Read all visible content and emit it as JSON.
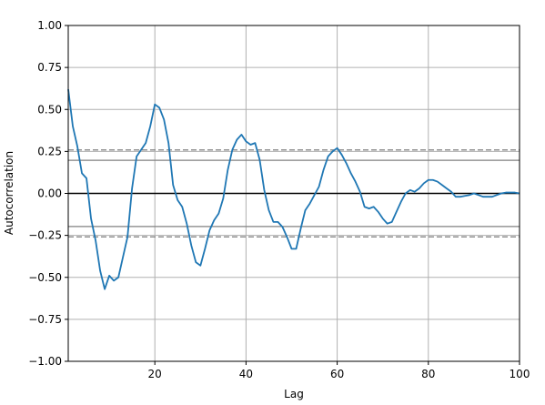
{
  "chart_data": {
    "type": "line",
    "xlabel": "Lag",
    "ylabel": "Autocorrelation",
    "xlim": [
      1,
      100
    ],
    "ylim": [
      -1.0,
      1.0
    ],
    "grid": true,
    "x_ticks": [
      20,
      40,
      60,
      80,
      100
    ],
    "x_tick_labels": [
      "20",
      "40",
      "60",
      "80",
      "100"
    ],
    "y_ticks": [
      -1.0,
      -0.75,
      -0.5,
      -0.25,
      0.0,
      0.25,
      0.5,
      0.75,
      1.0
    ],
    "y_tick_labels": [
      "−1.00",
      "−0.75",
      "−0.50",
      "−0.25",
      "0.00",
      "0.25",
      "0.50",
      "0.75",
      "1.00"
    ],
    "reference_lines": [
      {
        "y": 0.0,
        "style": "solid",
        "color": "#000000"
      },
      {
        "y": 0.197,
        "style": "solid",
        "color": "#808080"
      },
      {
        "y": -0.197,
        "style": "solid",
        "color": "#808080"
      },
      {
        "y": 0.259,
        "style": "dashed",
        "color": "#808080"
      },
      {
        "y": -0.259,
        "style": "dashed",
        "color": "#808080"
      }
    ],
    "series": [
      {
        "color": "#1f77b4",
        "x": [
          1,
          2,
          3,
          4,
          5,
          6,
          7,
          8,
          9,
          10,
          11,
          12,
          13,
          14,
          15,
          16,
          17,
          18,
          19,
          20,
          21,
          22,
          23,
          24,
          25,
          26,
          27,
          28,
          29,
          30,
          31,
          32,
          33,
          34,
          35,
          36,
          37,
          38,
          39,
          40,
          41,
          42,
          43,
          44,
          45,
          46,
          47,
          48,
          49,
          50,
          51,
          52,
          53,
          54,
          55,
          56,
          57,
          58,
          59,
          60,
          61,
          62,
          63,
          64,
          65,
          66,
          67,
          68,
          69,
          70,
          71,
          72,
          73,
          74,
          75,
          76,
          77,
          78,
          79,
          80,
          81,
          82,
          83,
          84,
          85,
          86,
          87,
          88,
          89,
          90,
          91,
          92,
          93,
          94,
          95,
          96,
          97,
          98,
          99,
          100
        ],
        "y": [
          0.62,
          0.4,
          0.28,
          0.12,
          0.09,
          -0.15,
          -0.28,
          -0.46,
          -0.57,
          -0.49,
          -0.52,
          -0.5,
          -0.38,
          -0.26,
          0.03,
          0.22,
          0.26,
          0.3,
          0.4,
          0.53,
          0.51,
          0.44,
          0.3,
          0.05,
          -0.04,
          -0.08,
          -0.18,
          -0.31,
          -0.41,
          -0.43,
          -0.33,
          -0.22,
          -0.16,
          -0.12,
          -0.03,
          0.14,
          0.26,
          0.32,
          0.35,
          0.31,
          0.29,
          0.3,
          0.2,
          0.02,
          -0.1,
          -0.17,
          -0.17,
          -0.2,
          -0.26,
          -0.33,
          -0.33,
          -0.21,
          -0.1,
          -0.06,
          -0.01,
          0.04,
          0.14,
          0.22,
          0.25,
          0.27,
          0.23,
          0.18,
          0.12,
          0.07,
          0.01,
          -0.08,
          -0.09,
          -0.08,
          -0.11,
          -0.15,
          -0.18,
          -0.17,
          -0.11,
          -0.05,
          0.0,
          0.02,
          0.01,
          0.03,
          0.06,
          0.08,
          0.08,
          0.07,
          0.05,
          0.03,
          0.01,
          -0.02,
          -0.02,
          -0.015,
          -0.01,
          0.0,
          -0.01,
          -0.02,
          -0.02,
          -0.02,
          -0.01,
          0.0,
          0.005,
          0.005,
          0.005,
          0.0
        ]
      }
    ]
  }
}
